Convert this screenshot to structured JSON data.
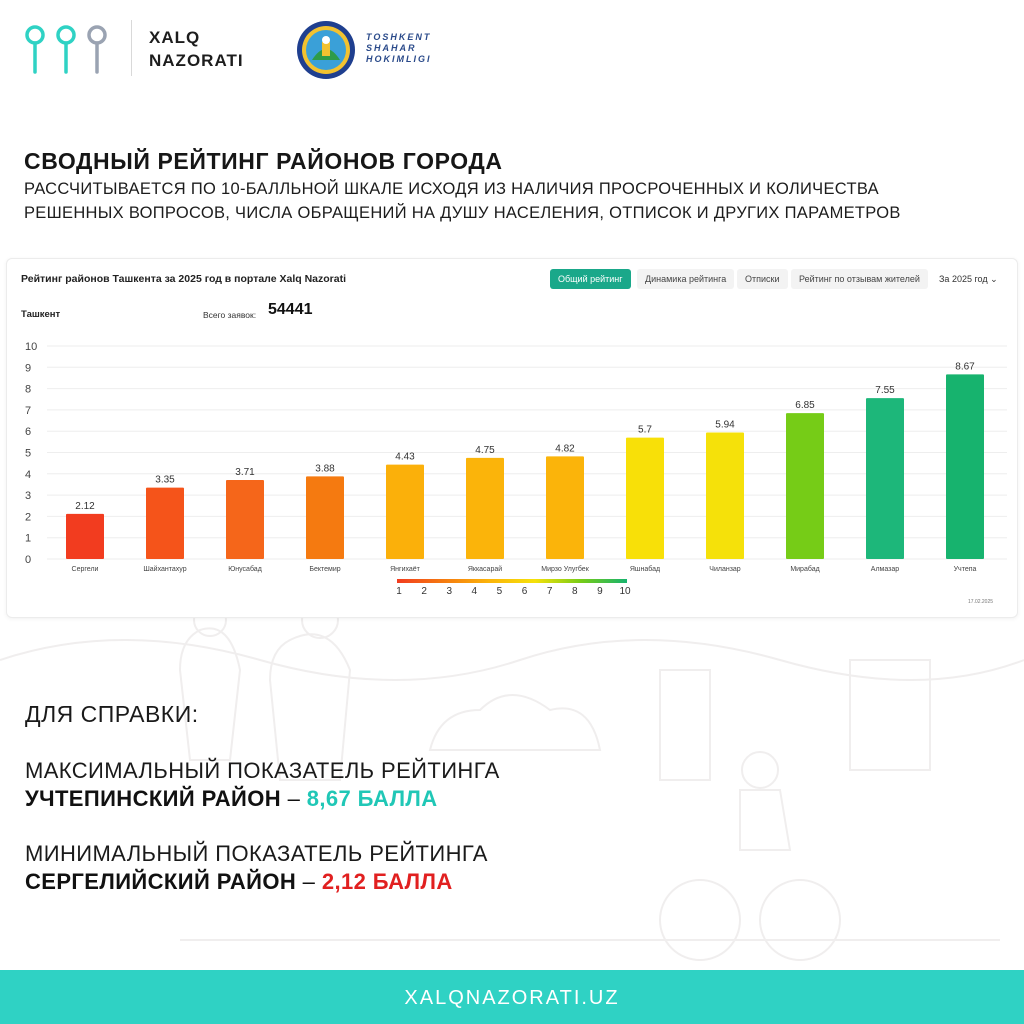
{
  "brand": {
    "logo_line1": "XALQ",
    "logo_line2": "NAZORATI",
    "hokimlik_line1": "TOSHKENT",
    "hokimlik_line2": "SHAHAR",
    "hokimlik_line3": "HOKIMLIGI",
    "logo_icon": "three-pins-icon",
    "emblem_icon": "city-emblem-icon",
    "colors": {
      "teal": "#2fd2c4",
      "grey": "#9aa3b2"
    }
  },
  "headline": {
    "title": "СВОДНЫЙ РЕЙТИНГ РАЙОНОВ ГОРОДА",
    "subtitle_line1": "РАССЧИТЫВАЕТСЯ ПО 10-БАЛЛЬНОЙ ШКАЛЕ ИСХОДЯ ИЗ НАЛИЧИЯ ПРОСРОЧЕННЫХ И  КОЛИЧЕСТВА",
    "subtitle_line2": "РЕШЕННЫХ ВОПРОСОВ, ЧИСЛА ОБРАЩЕНИЙ НА ДУШУ НАСЕЛЕНИЯ, ОТПИСОК И ДРУГИХ ПАРАМЕТРОВ"
  },
  "chart_panel": {
    "title": "Рейтинг районов Ташкента за 2025 год в портале Xalq Nazorati",
    "tabs": [
      {
        "label": "Общий рейтинг",
        "active": true
      },
      {
        "label": "Динамика рейтинга",
        "active": false
      },
      {
        "label": "Отписки",
        "active": false
      },
      {
        "label": "Рейтинг по отзывам жителей",
        "active": false
      }
    ],
    "year_select": "За 2025 год",
    "city": "Ташкент",
    "total_label": "Всего заявок:",
    "total_value": "54441",
    "date": "17.02.2025"
  },
  "chart_data": {
    "type": "bar",
    "title": "Рейтинг районов Ташкента за 2025 год в портале Xalq Nazorati",
    "categories": [
      "Сергели",
      "Шайхантахур",
      "Юнусабад",
      "Бектемир",
      "Янгихаёт",
      "Яккасарай",
      "Мирзо Улугбек",
      "Яшнабад",
      "Чиланзар",
      "Мирабад",
      "Алмазар",
      "Учтепа"
    ],
    "values": [
      2.12,
      3.35,
      3.71,
      3.88,
      4.43,
      4.75,
      4.82,
      5.7,
      5.94,
      6.85,
      7.55,
      8.67
    ],
    "value_labels": [
      "2.12",
      "3.35",
      "3.71",
      "3.88",
      "4.43",
      "4.75",
      "4.82",
      "5.7",
      "5.94",
      "6.85",
      "7.55",
      "8.67"
    ],
    "bar_colors": [
      "#f23c1f",
      "#f5541a",
      "#f5661a",
      "#f57a10",
      "#fbb00a",
      "#fbb40a",
      "#fbb40a",
      "#f8e008",
      "#f5e10a",
      "#76cc17",
      "#1db77a",
      "#17b36e"
    ],
    "ylim": [
      0,
      10
    ],
    "yticks": [
      "0",
      "1",
      "2",
      "3",
      "4",
      "5",
      "6",
      "7",
      "8",
      "9",
      "10"
    ],
    "grid": true,
    "legend": {
      "type": "color-scale",
      "labels": [
        "1",
        "2",
        "3",
        "4",
        "5",
        "6",
        "7",
        "8",
        "9",
        "10"
      ],
      "colors": [
        "#f23c1f",
        "#f57a10",
        "#fbb40a",
        "#f5e10a",
        "#76cc17",
        "#17b36e"
      ]
    }
  },
  "notes": {
    "heading": "ДЛЯ СПРАВКИ:",
    "max_line": "МАКСИМАЛЬНЫЙ ПОКАЗАТЕЛЬ РЕЙТИНГА",
    "max_district": "УЧТЕПИНСКИЙ  РАЙОН",
    "max_dash": " – ",
    "max_value": "8,67 БАЛЛА",
    "min_line": "МИНИМАЛЬНЫЙ ПОКАЗАТЕЛЬ РЕЙТИНГА",
    "min_district": "СЕРГЕЛИЙСКИЙ  РАЙОН",
    "min_dash": " – ",
    "min_value": "2,12 БАЛЛА",
    "colors": {
      "max": "#20c7b6",
      "min": "#e12020"
    }
  },
  "footer": {
    "url": "XALQNAZORATI.UZ",
    "background": "#2fd2c4"
  }
}
